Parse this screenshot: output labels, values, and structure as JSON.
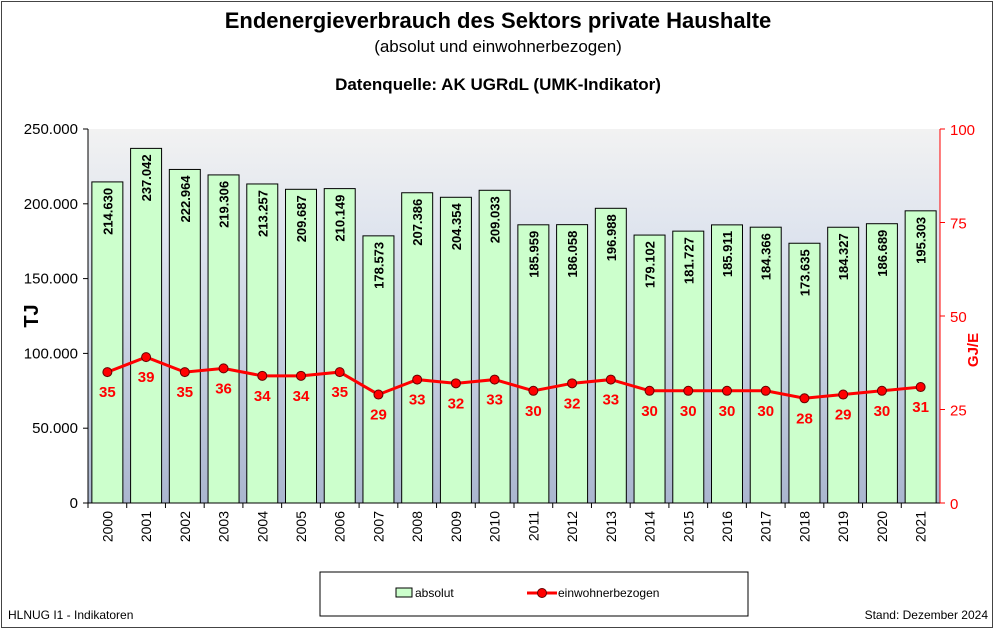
{
  "header": {
    "title": "Endenergieverbrauch des Sektors private Haushalte",
    "subtitle": "(absolut und einwohnerbezogen)",
    "source": "Datenquelle: AK UGRdL (UMK-Indikator)"
  },
  "footer": {
    "left": "HLNUG I1 - Indikatoren",
    "right": "Stand: Dezember 2024"
  },
  "chart_data": {
    "type": "bar+line",
    "categories": [
      "2000",
      "2001",
      "2002",
      "2003",
      "2004",
      "2005",
      "2006",
      "2007",
      "2008",
      "2009",
      "2010",
      "2011",
      "2012",
      "2013",
      "2014",
      "2015",
      "2016",
      "2017",
      "2018",
      "2019",
      "2020",
      "2021"
    ],
    "series": [
      {
        "name": "absolut",
        "type": "bar",
        "axis": "left",
        "color": "#ccffcc",
        "values": [
          214630,
          237042,
          222964,
          219306,
          213257,
          209687,
          210149,
          178573,
          207386,
          204354,
          209033,
          185959,
          186058,
          196988,
          179102,
          181727,
          185911,
          184366,
          173635,
          184327,
          186689,
          195303
        ],
        "labels": [
          "214.630",
          "237.042",
          "222.964",
          "219.306",
          "213.257",
          "209.687",
          "210.149",
          "178.573",
          "207.386",
          "204.354",
          "209.033",
          "185.959",
          "186.058",
          "196.988",
          "179.102",
          "181.727",
          "185.911",
          "184.366",
          "173.635",
          "184.327",
          "186.689",
          "195.303"
        ]
      },
      {
        "name": "einwohnerbezogen",
        "type": "line",
        "axis": "right",
        "color": "#ff0000",
        "values": [
          35,
          39,
          35,
          36,
          34,
          34,
          35,
          29,
          33,
          32,
          33,
          30,
          32,
          33,
          30,
          30,
          30,
          30,
          28,
          29,
          30,
          31
        ]
      }
    ],
    "y_left": {
      "label": "TJ",
      "range": [
        0,
        250000
      ],
      "ticks": [
        "0",
        "50.000",
        "100.000",
        "150.000",
        "200.000",
        "250.000"
      ]
    },
    "y_right": {
      "label": "GJ/E",
      "range": [
        0,
        100
      ],
      "ticks": [
        "0",
        "25",
        "50",
        "75",
        "100"
      ],
      "color": "#ff0000"
    },
    "legend": {
      "position": "bottom",
      "items": [
        "absolut",
        "einwohnerbezogen"
      ]
    },
    "grid": false
  }
}
